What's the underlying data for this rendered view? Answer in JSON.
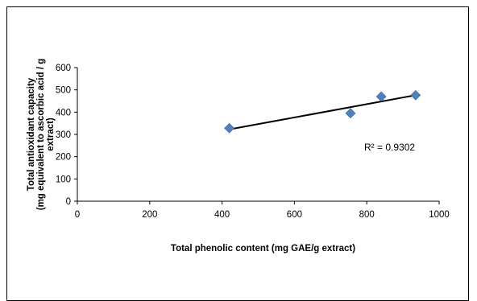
{
  "chart_data": {
    "type": "scatter",
    "title": "",
    "xlabel": "Total  phenolic content (mg GAE/g extract)",
    "ylabel_lines": [
      "Total antioxidant  capacity",
      "(mg equivalent to ascorbic acid / g",
      "extract)"
    ],
    "xlim": [
      0,
      1000
    ],
    "ylim": [
      0,
      600
    ],
    "xticks": [
      "0",
      "200",
      "400",
      "600",
      "800",
      "1000"
    ],
    "yticks": [
      "0",
      "100",
      "200",
      "300",
      "400",
      "500",
      "600"
    ],
    "points": [
      {
        "x": 420,
        "y": 328
      },
      {
        "x": 755,
        "y": 395
      },
      {
        "x": 840,
        "y": 470
      },
      {
        "x": 935,
        "y": 476
      }
    ],
    "trendline": {
      "x_start": 420,
      "x_end": 935
    },
    "annotation": "R² = 0.9302",
    "grid": false,
    "colors": {
      "marker": "#4f81bd",
      "trendline": "#000000",
      "axis": "#000000"
    }
  }
}
